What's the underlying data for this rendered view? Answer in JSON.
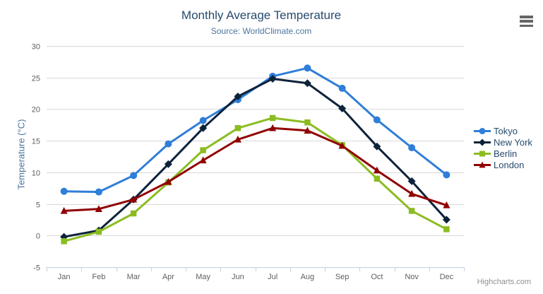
{
  "header": {
    "title": "Monthly Average Temperature",
    "subtitle": "Source: WorldClimate.com"
  },
  "credits": "Highcharts.com",
  "chart_data": {
    "type": "line",
    "title": "Monthly Average Temperature",
    "subtitle": "Source: WorldClimate.com",
    "categories": [
      "Jan",
      "Feb",
      "Mar",
      "Apr",
      "May",
      "Jun",
      "Jul",
      "Aug",
      "Sep",
      "Oct",
      "Nov",
      "Dec"
    ],
    "series": [
      {
        "name": "Tokyo",
        "color": "#2f7ed8",
        "marker": "circle",
        "values": [
          7.0,
          6.9,
          9.5,
          14.5,
          18.2,
          21.5,
          25.2,
          26.5,
          23.3,
          18.3,
          13.9,
          9.6
        ]
      },
      {
        "name": "New York",
        "color": "#0d233a",
        "marker": "diamond",
        "values": [
          -0.2,
          0.8,
          5.7,
          11.3,
          17.0,
          22.0,
          24.8,
          24.1,
          20.1,
          14.1,
          8.6,
          2.5
        ]
      },
      {
        "name": "Berlin",
        "color": "#8bbc21",
        "marker": "square",
        "values": [
          -0.9,
          0.6,
          3.5,
          8.4,
          13.5,
          17.0,
          18.6,
          17.9,
          14.3,
          9.0,
          3.9,
          1.0
        ]
      },
      {
        "name": "London",
        "color": "#910000",
        "marker": "triangle",
        "values": [
          3.9,
          4.2,
          5.7,
          8.5,
          11.9,
          15.2,
          17.0,
          16.6,
          14.2,
          10.3,
          6.6,
          4.8
        ]
      }
    ],
    "xlabel": "",
    "ylabel": "Temperature (°C)",
    "ylim": [
      -5,
      30
    ],
    "ytick_step": 5,
    "grid": true,
    "legend_position": "right"
  },
  "colors": {
    "title": "#274b6d",
    "subtitle": "#4d759e",
    "axis_title": "#4d759e",
    "axis_label": "#606060",
    "gridline": "#d8d8d8",
    "axis_line": "#c0d0e0",
    "legend_text": "#274b6d",
    "credits": "#909090"
  }
}
